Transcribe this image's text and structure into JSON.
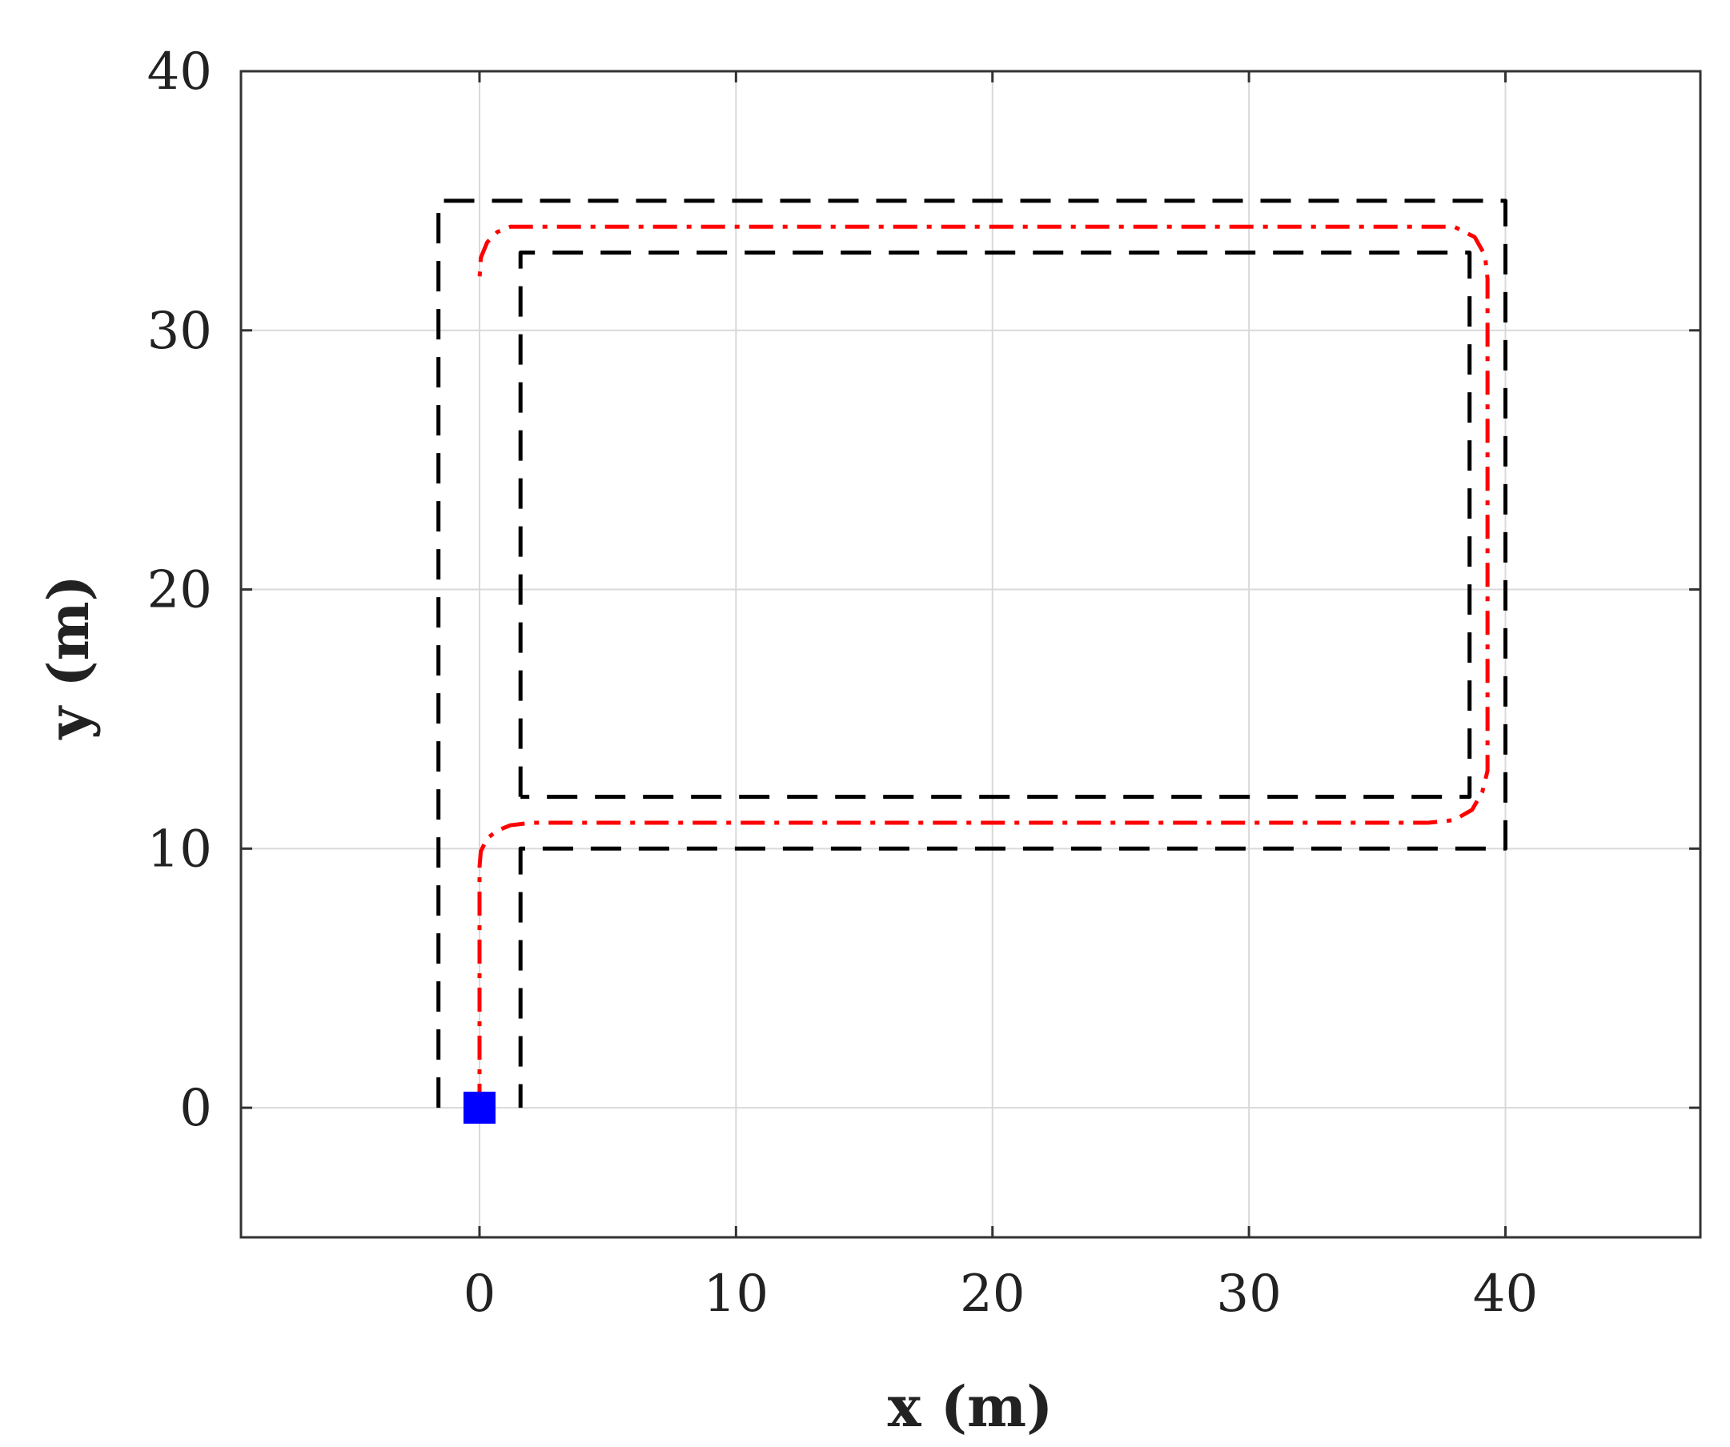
{
  "chart_data": {
    "type": "line",
    "title": "",
    "xlabel": "x (m)",
    "ylabel": "y (m)",
    "xlim": [
      -9.3,
      47.6
    ],
    "ylim": [
      -5,
      40
    ],
    "x_ticks": [
      0,
      10,
      20,
      30,
      40
    ],
    "y_ticks": [
      0,
      10,
      20,
      30,
      40
    ],
    "grid": true,
    "colors": {
      "boundary": "#000000",
      "path": "#ff0000",
      "start_marker": "#0000ff",
      "grid": "#d9d9d9",
      "axes": "#333333"
    },
    "series": [
      {
        "style": "dashed",
        "color": "#000000",
        "x": [
          -1.6,
          -1.6,
          40,
          40,
          1.6,
          1.6
        ],
        "y": [
          0,
          35,
          35,
          10,
          10,
          0
        ]
      },
      {
        "style": "dashed",
        "color": "#000000",
        "x": [
          1.6,
          1.6,
          38.6,
          38.6,
          1.6
        ],
        "y": [
          12,
          33,
          33,
          12,
          12
        ]
      },
      {
        "style": "dash-dot",
        "color": "#ff0000",
        "x": [
          0,
          0,
          0.05,
          0.3,
          0.7,
          1.2,
          2.0,
          37.0,
          38.0,
          38.7,
          39.1,
          39.3,
          39.3,
          39.2,
          38.8,
          38.0,
          37.0,
          2.0,
          1.2,
          0.7,
          0.3,
          0.05,
          0
        ],
        "y": [
          0,
          9.3,
          9.9,
          10.4,
          10.7,
          10.9,
          11.0,
          11.0,
          11.1,
          11.5,
          12.2,
          13.0,
          32.0,
          32.9,
          33.6,
          34.0,
          34.0,
          34.0,
          34.0,
          33.8,
          33.4,
          32.8,
          32.0
        ]
      },
      {
        "style": "marker",
        "marker": "square",
        "color": "#0000ff",
        "x": [
          0
        ],
        "y": [
          0
        ]
      }
    ]
  }
}
